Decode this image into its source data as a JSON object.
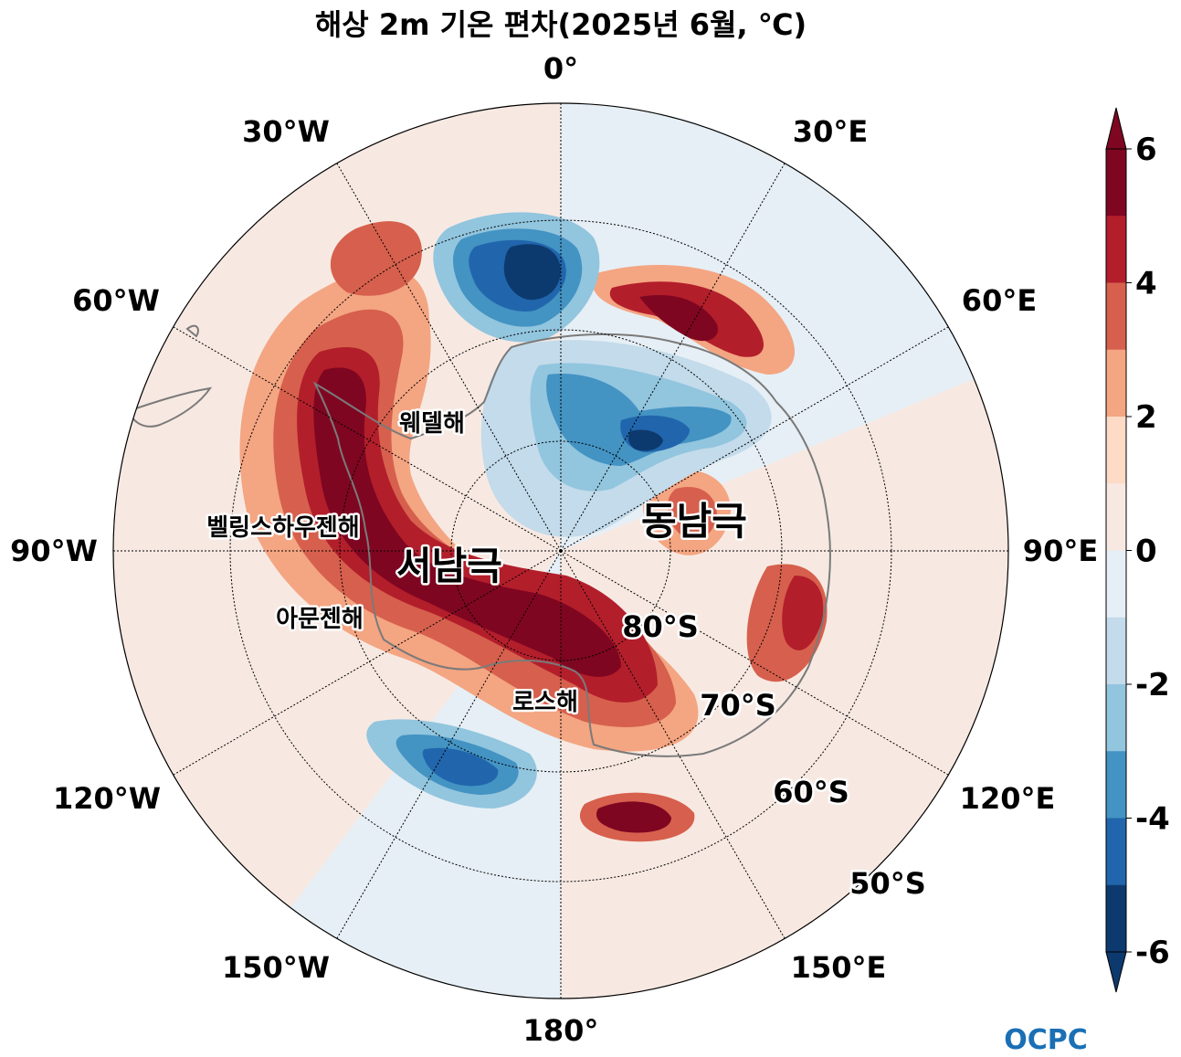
{
  "title": "해상 2m 기온 편차(2025년 6월, ℃)",
  "longitude_labels": {
    "lon_0": "0°",
    "lon_30e": "30°E",
    "lon_60e": "60°E",
    "lon_90e": "90°E",
    "lon_120e": "120°E",
    "lon_150e": "150°E",
    "lon_180": "180°",
    "lon_150w": "150°W",
    "lon_120w": "120°W",
    "lon_90w": "90°W",
    "lon_60w": "60°W",
    "lon_30w": "30°W"
  },
  "latitude_labels": {
    "lat_80s": "80°S",
    "lat_70s": "70°S",
    "lat_60s": "60°S",
    "lat_50s": "50°S"
  },
  "region_labels": {
    "weddell_sea": "웨델해",
    "bellingshausen_sea": "벨링스하우젠해",
    "amundsen_sea": "아문젠해",
    "ross_sea": "로스해",
    "west_antarctica": "서남극",
    "east_antarctica": "동남극"
  },
  "colorbar": {
    "ticks": [
      "6",
      "4",
      "2",
      "0",
      "-2",
      "-4",
      "-6"
    ],
    "min": -6,
    "max": 6,
    "step": 1,
    "colors_top_to_bottom": [
      "#7f0621",
      "#b31e2b",
      "#d6604d",
      "#f4a582",
      "#fddbc7",
      "#f7e9e2",
      "#e6eff5",
      "#c3dbeb",
      "#92c5de",
      "#4393c3",
      "#2166ac",
      "#0d3a6e"
    ],
    "extend": "both"
  },
  "logo": "OCPC",
  "colors": {
    "neutral_warm": "#f7e9e2",
    "neutral_cool": "#e6eff5",
    "coastline": "#7a7a7a"
  }
}
